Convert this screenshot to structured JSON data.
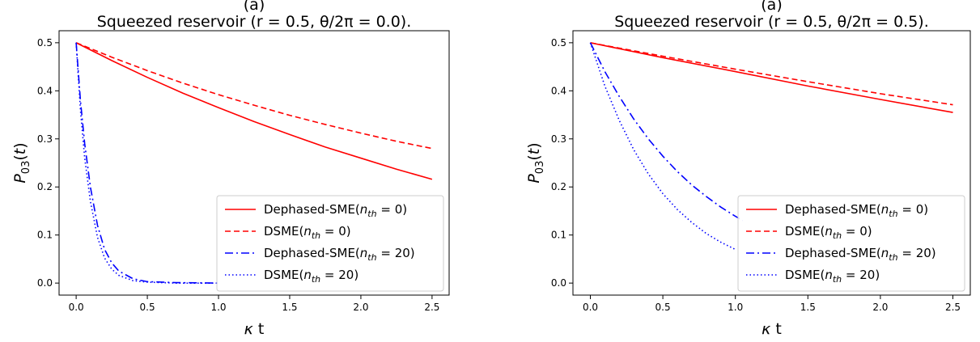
{
  "chart_data": [
    {
      "type": "line",
      "panel_label": "(a)",
      "title": "Squeezed reservoir  (r = 0.5,  θ/2π = 0.0).",
      "xlabel": "κ t",
      "ylabel": "P03(t)",
      "xlim": [
        -0.12,
        2.62
      ],
      "ylim": [
        -0.025,
        0.525
      ],
      "xticks": [
        0.0,
        0.5,
        1.0,
        1.5,
        2.0,
        2.5
      ],
      "xtick_labels": [
        "0.0",
        "0.5",
        "1.0",
        "1.5",
        "2.0",
        "2.5"
      ],
      "yticks": [
        0.0,
        0.1,
        0.2,
        0.3,
        0.4,
        0.5
      ],
      "ytick_labels": [
        "0.0",
        "0.1",
        "0.2",
        "0.3",
        "0.4",
        "0.5"
      ],
      "grid": false,
      "legend_position": "lower-right",
      "series": [
        {
          "name": "Dephased-SME(n_th = 0)",
          "label_main": "Dephased-SME(",
          "label_sub": "th",
          "label_eq": " = 0)",
          "color": "#ff0000",
          "style": "solid",
          "x": [
            0,
            0.25,
            0.5,
            0.75,
            1.0,
            1.25,
            1.5,
            1.75,
            2.0,
            2.25,
            2.5
          ],
          "y": [
            0.5,
            0.463,
            0.428,
            0.395,
            0.365,
            0.336,
            0.309,
            0.283,
            0.26,
            0.237,
            0.216
          ]
        },
        {
          "name": "DSME(n_th = 0)",
          "label_main": "DSME(",
          "label_sub": "th",
          "label_eq": " = 0)",
          "color": "#ff0000",
          "style": "dashed",
          "x": [
            0,
            0.25,
            0.5,
            0.75,
            1.0,
            1.25,
            1.5,
            1.75,
            2.0,
            2.25,
            2.5
          ],
          "y": [
            0.5,
            0.47,
            0.442,
            0.416,
            0.392,
            0.37,
            0.349,
            0.33,
            0.312,
            0.295,
            0.28
          ]
        },
        {
          "name": "Dephased-SME(n_th = 20)",
          "label_main": "Dephased-SME(",
          "label_sub": "th",
          "label_eq": " = 20)",
          "color": "#0000ff",
          "style": "dashdot",
          "x": [
            0,
            0.03,
            0.06,
            0.1,
            0.15,
            0.2,
            0.25,
            0.3,
            0.4,
            0.5,
            0.7,
            1.0
          ],
          "y": [
            0.5,
            0.38,
            0.29,
            0.2,
            0.12,
            0.07,
            0.042,
            0.025,
            0.009,
            0.003,
            0.001,
            0.0
          ]
        },
        {
          "name": "DSME(n_th = 20)",
          "label_main": "DSME(",
          "label_sub": "th",
          "label_eq": " = 20)",
          "color": "#0000ff",
          "style": "dotted",
          "x": [
            0,
            0.03,
            0.06,
            0.1,
            0.15,
            0.2,
            0.25,
            0.3,
            0.4,
            0.5,
            0.7,
            1.0
          ],
          "y": [
            0.5,
            0.36,
            0.26,
            0.17,
            0.095,
            0.052,
            0.029,
            0.016,
            0.005,
            0.002,
            0.0,
            0.0
          ]
        }
      ]
    },
    {
      "type": "line",
      "panel_label": "(a)",
      "title": "Squeezed reservoir  (r = 0.5,  θ/2π = 0.5).",
      "xlabel": "κ t",
      "ylabel": "P03(t)",
      "xlim": [
        -0.12,
        2.62
      ],
      "ylim": [
        -0.025,
        0.525
      ],
      "xticks": [
        0.0,
        0.5,
        1.0,
        1.5,
        2.0,
        2.5
      ],
      "xtick_labels": [
        "0.0",
        "0.5",
        "1.0",
        "1.5",
        "2.0",
        "2.5"
      ],
      "yticks": [
        0.0,
        0.1,
        0.2,
        0.3,
        0.4,
        0.5
      ],
      "ytick_labels": [
        "0.0",
        "0.1",
        "0.2",
        "0.3",
        "0.4",
        "0.5"
      ],
      "grid": false,
      "legend_position": "lower-right",
      "series": [
        {
          "name": "Dephased-SME(n_th = 0)",
          "label_main": "Dephased-SME(",
          "label_sub": "th",
          "label_eq": " = 0)",
          "color": "#ff0000",
          "style": "solid",
          "x": [
            0,
            0.5,
            1.0,
            1.5,
            2.0,
            2.5
          ],
          "y": [
            0.5,
            0.469,
            0.44,
            0.41,
            0.382,
            0.355
          ]
        },
        {
          "name": "DSME(n_th = 0)",
          "label_main": "DSME(",
          "label_sub": "th",
          "label_eq": " = 0)",
          "color": "#ff0000",
          "style": "dashed",
          "x": [
            0,
            0.5,
            1.0,
            1.5,
            2.0,
            2.5
          ],
          "y": [
            0.5,
            0.472,
            0.445,
            0.419,
            0.394,
            0.371
          ]
        },
        {
          "name": "Dephased-SME(n_th = 20)",
          "label_main": "Dephased-SME(",
          "label_sub": "th",
          "label_eq": " = 20)",
          "color": "#0000ff",
          "style": "dashdot",
          "x": [
            0,
            0.1,
            0.2,
            0.3,
            0.4,
            0.5,
            0.6,
            0.7,
            0.8,
            0.9,
            1.0,
            1.05
          ],
          "y": [
            0.5,
            0.44,
            0.388,
            0.341,
            0.3,
            0.264,
            0.232,
            0.204,
            0.18,
            0.158,
            0.139,
            0.13
          ]
        },
        {
          "name": "DSME(n_th = 20)",
          "label_main": "DSME(",
          "label_sub": "th",
          "label_eq": " = 20)",
          "color": "#0000ff",
          "style": "dotted",
          "x": [
            0,
            0.1,
            0.2,
            0.3,
            0.4,
            0.5,
            0.6,
            0.7,
            0.8,
            0.9,
            1.0
          ],
          "y": [
            0.5,
            0.41,
            0.338,
            0.277,
            0.227,
            0.186,
            0.153,
            0.126,
            0.103,
            0.085,
            0.07
          ]
        }
      ]
    }
  ]
}
